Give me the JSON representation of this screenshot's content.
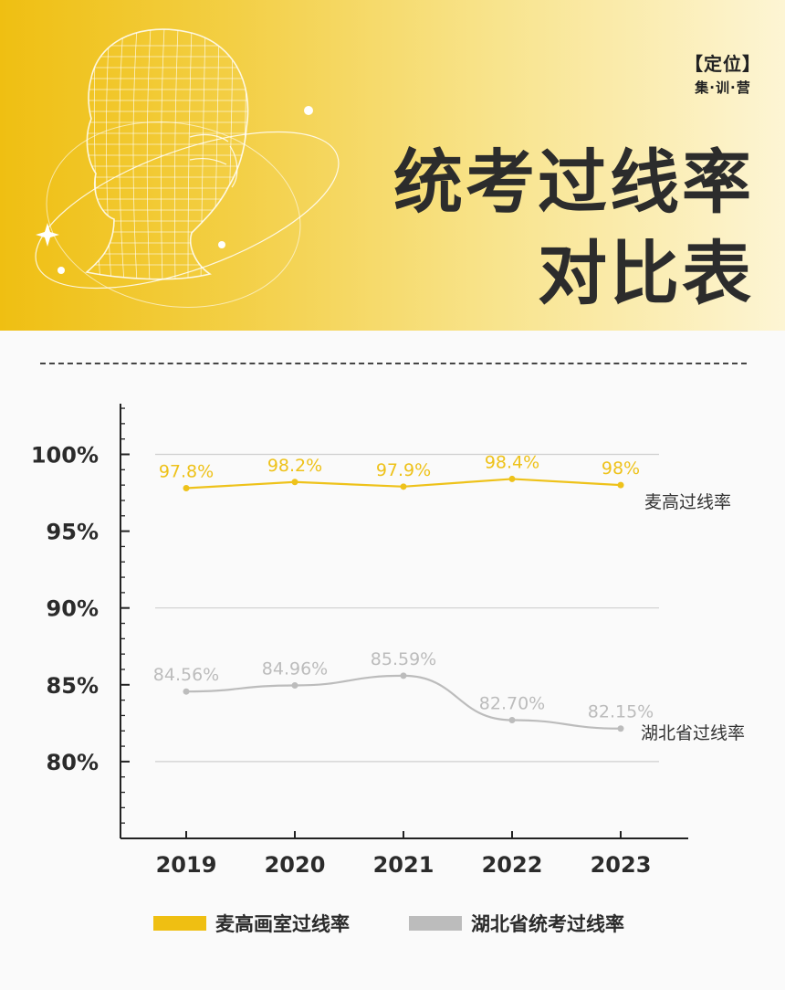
{
  "header": {
    "badge_main": "【定位】",
    "badge_sub": "集·训·营",
    "title_line1": "统考过线率",
    "title_line2": "对比表"
  },
  "colors": {
    "accent": "#efbf12",
    "series_primary": "#eec21a",
    "series_secondary": "#bcbcbc"
  },
  "chart_data": {
    "type": "line",
    "x": [
      "2019",
      "2020",
      "2021",
      "2022",
      "2023"
    ],
    "y_ticks": [
      "100%",
      "95%",
      "90%",
      "85%",
      "80%"
    ],
    "y_tick_values": [
      100,
      95,
      90,
      85,
      80
    ],
    "ylim": [
      75,
      103.3
    ],
    "grid": "horizontal at 100%, 90%, 80%",
    "series": [
      {
        "name": "麦高过线率",
        "legend": "麦高画室过线率",
        "values": [
          97.8,
          98.2,
          97.9,
          98.4,
          98.0
        ],
        "labels": [
          "97.8%",
          "98.2%",
          "97.9%",
          "98.4%",
          "98%"
        ],
        "color": "#eec21a"
      },
      {
        "name": "湖北省过线率",
        "legend": "湖北省统考过线率",
        "values": [
          84.56,
          84.96,
          85.59,
          82.7,
          82.15
        ],
        "labels": [
          "84.56%",
          "84.96%",
          "85.59%",
          "82.70%",
          "82.15%"
        ],
        "color": "#bcbcbc"
      }
    ]
  }
}
